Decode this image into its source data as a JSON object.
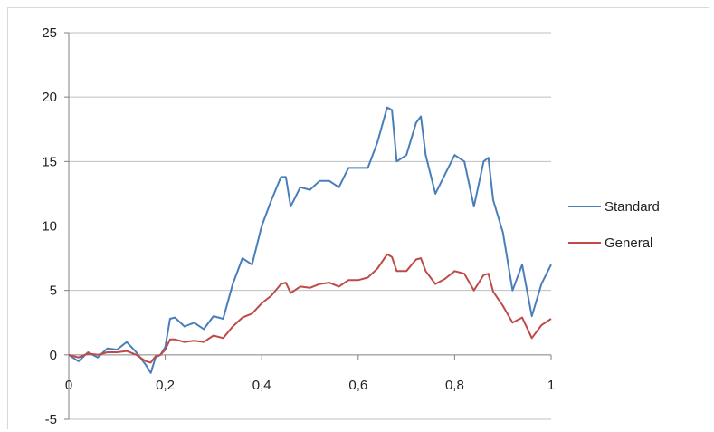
{
  "chart_data": {
    "type": "line",
    "x": [
      0,
      0.02,
      0.04,
      0.06,
      0.08,
      0.1,
      0.12,
      0.14,
      0.16,
      0.17,
      0.18,
      0.19,
      0.2,
      0.21,
      0.22,
      0.24,
      0.26,
      0.28,
      0.3,
      0.32,
      0.34,
      0.36,
      0.38,
      0.4,
      0.42,
      0.44,
      0.45,
      0.46,
      0.48,
      0.5,
      0.52,
      0.54,
      0.56,
      0.58,
      0.6,
      0.62,
      0.64,
      0.66,
      0.67,
      0.68,
      0.7,
      0.72,
      0.73,
      0.74,
      0.76,
      0.78,
      0.8,
      0.82,
      0.84,
      0.86,
      0.87,
      0.88,
      0.9,
      0.92,
      0.94,
      0.96,
      0.98,
      1.0
    ],
    "series": [
      {
        "name": "Standard",
        "color": "#4a7ebb",
        "values": [
          0,
          -0.5,
          0.2,
          -0.2,
          0.5,
          0.4,
          1.0,
          0.2,
          -0.8,
          -1.4,
          -0.2,
          0,
          0.6,
          2.8,
          2.9,
          2.2,
          2.5,
          2.0,
          3.0,
          2.8,
          5.5,
          7.5,
          7.0,
          10.0,
          12.0,
          13.8,
          13.8,
          11.5,
          13.0,
          12.8,
          13.5,
          13.5,
          13.0,
          14.5,
          14.5,
          14.5,
          16.5,
          19.2,
          19.0,
          15.0,
          15.5,
          18.0,
          18.5,
          15.5,
          12.5,
          14.0,
          15.5,
          15.0,
          11.5,
          15.0,
          15.3,
          12.0,
          9.5,
          5.0,
          7.0,
          3.0,
          5.5,
          7.0
        ]
      },
      {
        "name": "General",
        "color": "#be4b48",
        "values": [
          0,
          -0.2,
          0.1,
          0,
          0.2,
          0.2,
          0.3,
          0,
          -0.5,
          -0.6,
          -0.1,
          0,
          0.4,
          1.2,
          1.2,
          1.0,
          1.1,
          1.0,
          1.5,
          1.3,
          2.2,
          2.9,
          3.2,
          4.0,
          4.6,
          5.5,
          5.6,
          4.8,
          5.3,
          5.2,
          5.5,
          5.6,
          5.3,
          5.8,
          5.8,
          6.0,
          6.7,
          7.8,
          7.6,
          6.5,
          6.5,
          7.4,
          7.5,
          6.5,
          5.5,
          5.9,
          6.5,
          6.3,
          5.0,
          6.2,
          6.3,
          4.9,
          3.8,
          2.5,
          2.9,
          1.3,
          2.3,
          2.8
        ]
      }
    ],
    "xlim": [
      0,
      1
    ],
    "ylim": [
      -5,
      25
    ],
    "x_ticks": [
      {
        "value": 0,
        "label": "0"
      },
      {
        "value": 0.2,
        "label": "0,2"
      },
      {
        "value": 0.4,
        "label": "0,4"
      },
      {
        "value": 0.6,
        "label": "0,6"
      },
      {
        "value": 0.8,
        "label": "0,8"
      },
      {
        "value": 1,
        "label": "1"
      }
    ],
    "y_ticks": [
      {
        "value": -5,
        "label": "-5"
      },
      {
        "value": 0,
        "label": "0"
      },
      {
        "value": 5,
        "label": "5"
      },
      {
        "value": 10,
        "label": "10"
      },
      {
        "value": 15,
        "label": "15"
      },
      {
        "value": 20,
        "label": "20"
      },
      {
        "value": 25,
        "label": "25"
      }
    ],
    "grid": "horizontal",
    "legend_position": "right",
    "gridline_color": "#bfbfbf",
    "axis_color": "#808080"
  }
}
